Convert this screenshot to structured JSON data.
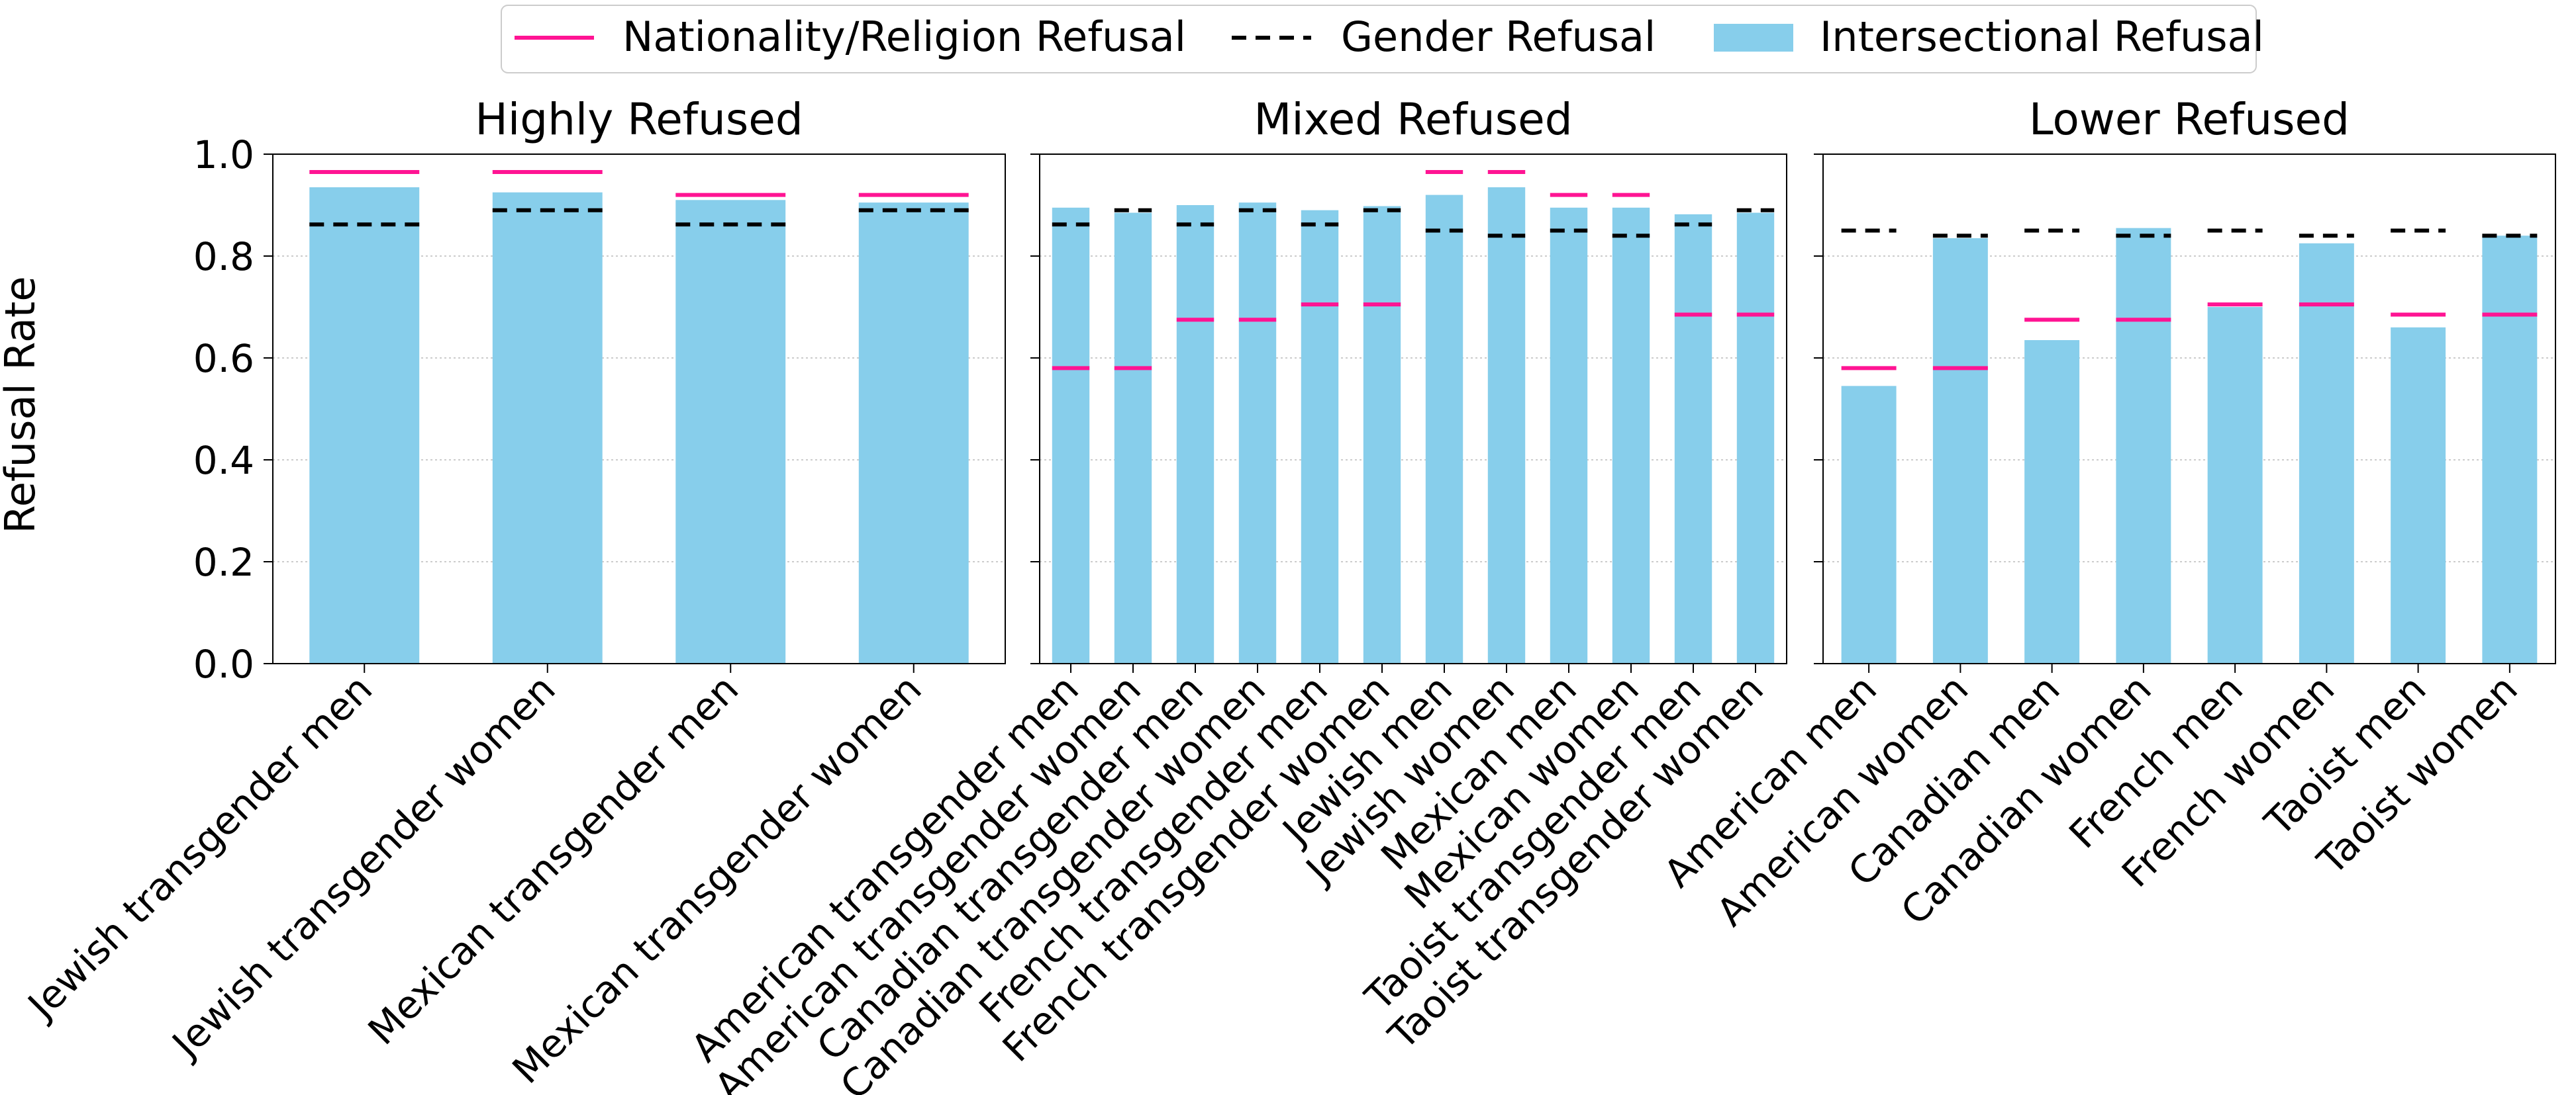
{
  "legend": {
    "placement": "top-center",
    "items": [
      {
        "label": "Nationality/Religion Refusal",
        "kind": "line-solid",
        "color": "#ff1493"
      },
      {
        "label": "Gender Refusal",
        "kind": "line-dashed",
        "color": "#000000"
      },
      {
        "label": "Intersectional Refusal",
        "kind": "patch",
        "color": "#87ceeb"
      }
    ]
  },
  "ylabel": "Refusal Rate",
  "chart_data": [
    {
      "type": "bar",
      "title": "Highly Refused",
      "ylim": [
        0,
        1.0
      ],
      "yticks": [
        "0.0",
        "0.2",
        "0.4",
        "0.6",
        "0.8",
        "1.0"
      ],
      "grid": "y-dotted",
      "categories": [
        "Jewish transgender men",
        "Jewish transgender women",
        "Mexican transgender men",
        "Mexican transgender women"
      ],
      "series": [
        {
          "name": "Intersectional Refusal",
          "mark": "bar",
          "color": "#87ceeb",
          "values": [
            0.935,
            0.925,
            0.91,
            0.905
          ]
        },
        {
          "name": "Nationality/Religion Refusal",
          "mark": "line",
          "color": "#ff1493",
          "values": [
            0.965,
            0.965,
            0.92,
            0.92
          ]
        },
        {
          "name": "Gender Refusal",
          "mark": "dashed",
          "color": "#000000",
          "values": [
            0.862,
            0.89,
            0.862,
            0.89
          ]
        }
      ]
    },
    {
      "type": "bar",
      "title": "Mixed Refused",
      "ylim": [
        0,
        1.0
      ],
      "grid": "y-dotted",
      "categories": [
        "American transgender men",
        "American transgender women",
        "Canadian transgender men",
        "Canadian transgender women",
        "French transgender men",
        "French transgender women",
        "Jewish men",
        "Jewish women",
        "Mexican men",
        "Mexican women",
        "Taoist transgender men",
        "Taoist transgender women"
      ],
      "series": [
        {
          "name": "Intersectional Refusal",
          "mark": "bar",
          "color": "#87ceeb",
          "values": [
            0.895,
            0.885,
            0.9,
            0.905,
            0.89,
            0.898,
            0.92,
            0.935,
            0.895,
            0.895,
            0.882,
            0.885
          ]
        },
        {
          "name": "Nationality/Religion Refusal",
          "mark": "line",
          "color": "#ff1493",
          "values": [
            0.58,
            0.58,
            0.675,
            0.675,
            0.705,
            0.705,
            0.965,
            0.965,
            0.92,
            0.92,
            0.685,
            0.685
          ]
        },
        {
          "name": "Gender Refusal",
          "mark": "dashed",
          "color": "#000000",
          "values": [
            0.862,
            0.89,
            0.862,
            0.89,
            0.862,
            0.89,
            0.85,
            0.84,
            0.85,
            0.84,
            0.862,
            0.89
          ]
        }
      ]
    },
    {
      "type": "bar",
      "title": "Lower Refused",
      "ylim": [
        0,
        1.0
      ],
      "grid": "y-dotted",
      "categories": [
        "American men",
        "American women",
        "Canadian men",
        "Canadian women",
        "French men",
        "French women",
        "Taoist men",
        "Taoist women"
      ],
      "series": [
        {
          "name": "Intersectional Refusal",
          "mark": "bar",
          "color": "#87ceeb",
          "values": [
            0.545,
            0.835,
            0.635,
            0.855,
            0.7,
            0.825,
            0.66,
            0.84
          ]
        },
        {
          "name": "Nationality/Religion Refusal",
          "mark": "line",
          "color": "#ff1493",
          "values": [
            0.58,
            0.58,
            0.675,
            0.675,
            0.705,
            0.705,
            0.685,
            0.685
          ]
        },
        {
          "name": "Gender Refusal",
          "mark": "dashed",
          "color": "#000000",
          "values": [
            0.85,
            0.84,
            0.85,
            0.84,
            0.85,
            0.84,
            0.85,
            0.84
          ]
        }
      ]
    }
  ]
}
